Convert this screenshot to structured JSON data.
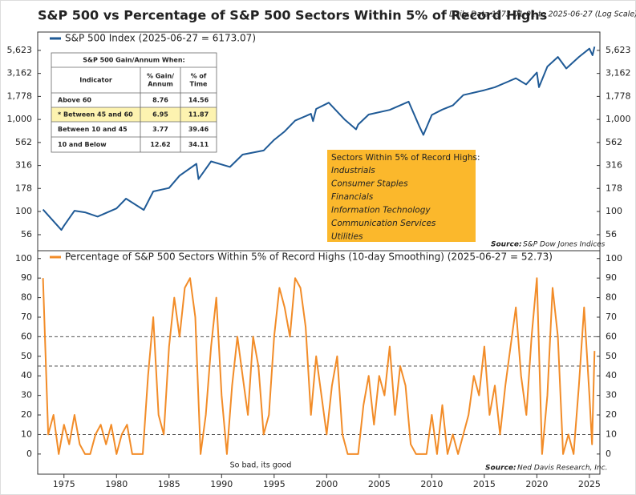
{
  "chart_data": [
    {
      "type": "line",
      "title": "S&P 500 vs Percentage of S&P 500 Sectors Within 5% of Record Highs",
      "subtitle": "Daily Data 1973-01-01 to 2025-06-27 (Log Scale)",
      "log_scale": true,
      "x": [
        1973.0,
        1974.75,
        1975.0,
        1976.0,
        1977.0,
        1978.2,
        1980.0,
        1980.9,
        1982.6,
        1983.5,
        1985.0,
        1986.0,
        1987.6,
        1987.8,
        1989.0,
        1990.8,
        1992.0,
        1994.0,
        1995.0,
        1996.0,
        1997.0,
        1998.5,
        1998.7,
        1999.0,
        2000.2,
        2001.7,
        2002.8,
        2003.0,
        2004.0,
        2006.0,
        2007.8,
        2008.8,
        2009.2,
        2010.0,
        2011.0,
        2012.0,
        2013.0,
        2015.0,
        2016.0,
        2018.0,
        2018.98,
        2020.0,
        2020.2,
        2021.0,
        2022.0,
        2022.8,
        2024.0,
        2025.0,
        2025.3,
        2025.49
      ],
      "series": [
        {
          "name": "S&P 500 Index (2025-06-27 = 6173.07)",
          "color": "#1f5a96",
          "values": [
            105,
            63,
            70,
            102,
            98,
            88,
            108,
            138,
            104,
            165,
            180,
            245,
            330,
            225,
            350,
            305,
            415,
            460,
            600,
            740,
            970,
            1150,
            960,
            1300,
            1520,
            1000,
            780,
            880,
            1130,
            1270,
            1560,
            850,
            680,
            1120,
            1280,
            1420,
            1840,
            2080,
            2240,
            2800,
            2400,
            3230,
            2240,
            3750,
            4770,
            3580,
            4770,
            5880,
            4980,
            6173.07
          ]
        }
      ],
      "xlim": [
        1972.5,
        2026
      ],
      "xticks": [
        1975,
        1980,
        1985,
        1990,
        1995,
        2000,
        2005,
        2010,
        2015,
        2020,
        2025
      ],
      "ylim": [
        37.5,
        8900
      ],
      "yticks": [
        56,
        100,
        178,
        316,
        562,
        {
          "value": 1000,
          "label": "1,000"
        },
        {
          "value": 1778,
          "label": "1,778"
        },
        {
          "value": 3162,
          "label": "3,162"
        },
        {
          "value": 5623,
          "label": "5,623"
        }
      ],
      "table": {
        "title": "S&P 500 Gain/Annum When:",
        "headers": [
          [
            "Indicator"
          ],
          [
            "% Gain/",
            "Annum"
          ],
          [
            "% of",
            "Time"
          ]
        ],
        "rows": [
          [
            "Above 60",
            8.76,
            14.56
          ],
          [
            "* Between 45 and 60",
            6.95,
            11.87
          ],
          [
            "Between 10 and 45",
            3.77,
            39.46
          ],
          [
            "10 and Below",
            12.62,
            34.11
          ]
        ],
        "highlight_row": 1
      },
      "annotation_box": {
        "title": "Sectors Within 5% of Record Highs:",
        "items": [
          "Industrials",
          "Consumer Staples",
          "Financials",
          "Information Technology",
          "Communication Services",
          "Utilities"
        ],
        "color": "#fbb82c"
      },
      "source_label": "Source:",
      "source": "S&P Dow Jones Indices"
    },
    {
      "type": "line",
      "x": [
        1973.0,
        1973.5,
        1974.0,
        1974.5,
        1975.0,
        1975.5,
        1976.0,
        1976.5,
        1977.0,
        1977.5,
        1978.0,
        1978.5,
        1979.0,
        1979.5,
        1980.0,
        1980.5,
        1981.0,
        1981.5,
        1982.0,
        1982.5,
        1983.0,
        1983.5,
        1984.0,
        1984.5,
        1985.0,
        1985.5,
        1986.0,
        1986.5,
        1987.0,
        1987.5,
        1988.0,
        1988.5,
        1989.0,
        1989.5,
        1990.0,
        1990.5,
        1991.0,
        1991.5,
        1992.0,
        1992.5,
        1993.0,
        1993.5,
        1994.0,
        1994.5,
        1995.0,
        1995.5,
        1996.0,
        1996.5,
        1997.0,
        1997.5,
        1998.0,
        1998.5,
        1999.0,
        1999.5,
        2000.0,
        2000.5,
        2001.0,
        2001.5,
        2002.0,
        2002.5,
        2003.0,
        2003.5,
        2004.0,
        2004.5,
        2005.0,
        2005.5,
        2006.0,
        2006.5,
        2007.0,
        2007.5,
        2008.0,
        2008.5,
        2009.0,
        2009.5,
        2010.0,
        2010.5,
        2011.0,
        2011.5,
        2012.0,
        2012.5,
        2013.0,
        2013.5,
        2014.0,
        2014.5,
        2015.0,
        2015.5,
        2016.0,
        2016.5,
        2017.0,
        2017.5,
        2018.0,
        2018.5,
        2019.0,
        2019.5,
        2020.0,
        2020.5,
        2021.0,
        2021.5,
        2022.0,
        2022.5,
        2023.0,
        2023.5,
        2024.0,
        2024.5,
        2025.0,
        2025.25,
        2025.49
      ],
      "series": [
        {
          "name": "Percentage of S&P 500 Sectors Within 5% of Record Highs (10-day Smoothing) (2025-06-27 = 52.73)",
          "color": "#f28c28",
          "values": [
            90,
            10,
            20,
            0,
            15,
            5,
            20,
            5,
            0,
            0,
            10,
            15,
            5,
            15,
            0,
            10,
            15,
            0,
            0,
            0,
            40,
            70,
            20,
            10,
            55,
            80,
            60,
            85,
            90,
            70,
            0,
            20,
            55,
            80,
            30,
            0,
            35,
            60,
            40,
            20,
            60,
            45,
            10,
            20,
            60,
            85,
            75,
            60,
            90,
            85,
            65,
            20,
            50,
            30,
            10,
            35,
            50,
            10,
            0,
            0,
            0,
            25,
            40,
            15,
            40,
            30,
            55,
            20,
            45,
            35,
            5,
            0,
            0,
            0,
            20,
            0,
            25,
            0,
            10,
            0,
            10,
            20,
            40,
            30,
            55,
            20,
            35,
            10,
            35,
            55,
            75,
            40,
            20,
            60,
            90,
            0,
            30,
            85,
            60,
            0,
            10,
            0,
            35,
            75,
            30,
            5,
            52.73
          ]
        }
      ],
      "xlim": [
        1972.5,
        2026
      ],
      "xticks": [
        1975,
        1980,
        1985,
        1990,
        1995,
        2000,
        2005,
        2010,
        2015,
        2020,
        2025
      ],
      "ylim": [
        -10.3,
        104
      ],
      "yticks": [
        0,
        10,
        20,
        30,
        40,
        50,
        60,
        70,
        80,
        90,
        100
      ],
      "reference_lines": [
        10,
        45,
        60
      ],
      "annotation": "So bad, its good",
      "source_label": "Source:",
      "source": "Ned Davis Research, Inc."
    }
  ]
}
